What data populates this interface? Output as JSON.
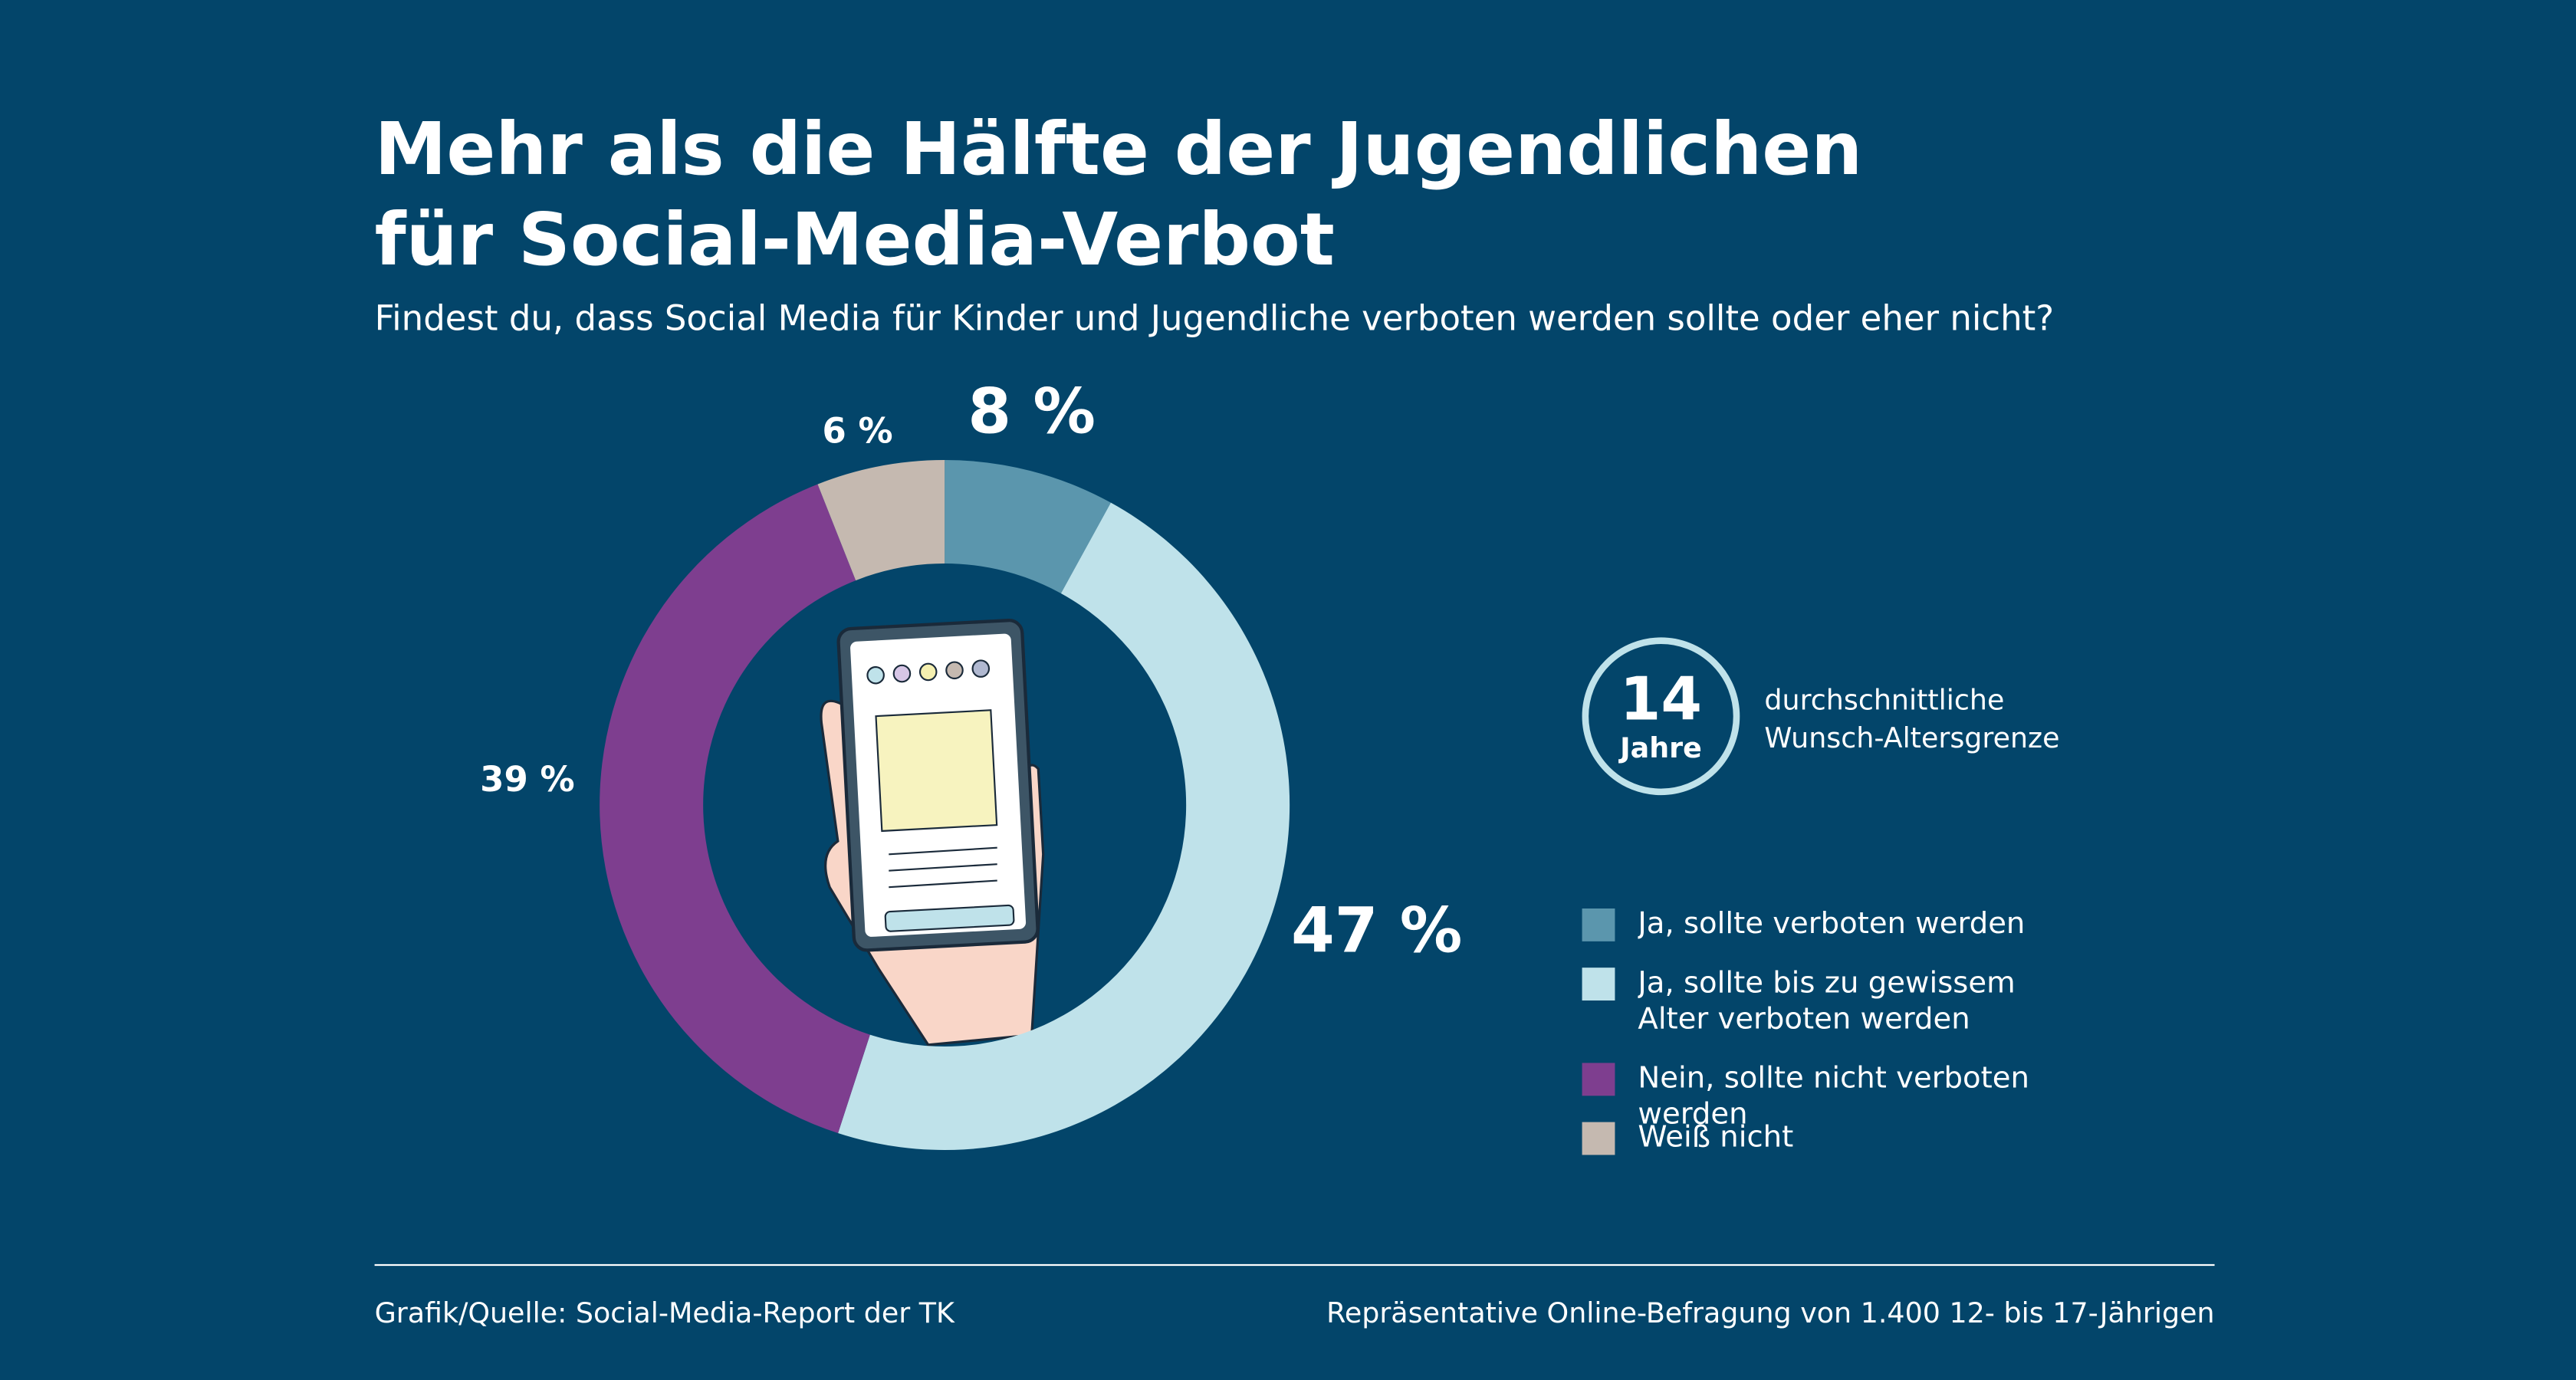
{
  "chart_data": {
    "type": "donut",
    "title": [
      "Mehr als die Hälfte der Jugendlichen",
      "für Social-Media-Verbot"
    ],
    "subtitle": "Findest du, dass Social Media für Kinder und Jugendliche verboten werden sollte oder eher nicht?",
    "categories": [
      "Ja, sollte verboten werden",
      "Ja, sollte bis zu gewissem Alter verboten werden",
      "Nein, sollte nicht verboten werden",
      "Weiß nicht"
    ],
    "values": [
      8,
      47,
      39,
      6
    ],
    "value_labels": [
      "8 %",
      "47 %",
      "39 %",
      "6 %"
    ],
    "colors": [
      "#5b96ad",
      "#bfe2ea",
      "#7e3e8f",
      "#c5b9b0"
    ],
    "badge": {
      "value": 14,
      "unit": "Jahre",
      "text": [
        "durchschnittliche",
        "Wunsch-Altersgrenze"
      ]
    },
    "source": "Grafik/Quelle: Social-Media-Report der TK",
    "note": "Repräsentative Online-Befragung von 1.400 12- bis 17-Jährigen"
  }
}
